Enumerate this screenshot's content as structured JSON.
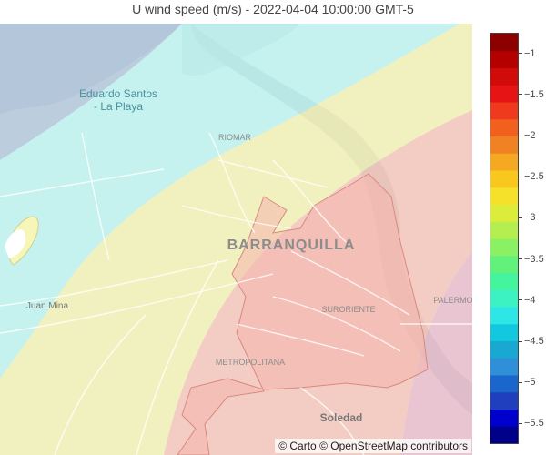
{
  "title": "U wind speed (m/s) - 2022-04-04 10:00:00 GMT-5",
  "map": {
    "labels": [
      {
        "id": "eduardo",
        "lines": [
          "Eduardo Santos",
          "- La Playa"
        ]
      },
      {
        "id": "riomar",
        "lines": [
          "RIOMAR"
        ]
      },
      {
        "id": "barranquilla",
        "lines": [
          "BARRANQUILLA"
        ]
      },
      {
        "id": "suroriente",
        "lines": [
          "SURORIENTE"
        ]
      },
      {
        "id": "juan-mina",
        "lines": [
          "Juan Mina"
        ]
      },
      {
        "id": "metropolitana",
        "lines": [
          "METROPOLITANA"
        ]
      },
      {
        "id": "soledad",
        "lines": [
          "Soledad"
        ]
      },
      {
        "id": "palermo",
        "lines": [
          "PALERMO"
        ]
      }
    ],
    "wind_zones": [
      {
        "name": "zone-1",
        "color": "#a8c0d8"
      },
      {
        "name": "zone-2",
        "color": "#b5f5f0"
      },
      {
        "name": "zone-3",
        "color": "#f3f3b0"
      },
      {
        "name": "zone-4",
        "color": "#f5c3b6"
      },
      {
        "name": "zone-5",
        "color": "#e8b8c8"
      }
    ]
  },
  "colorbar": {
    "min": -5.75,
    "max": -0.75,
    "ticks": [
      "−1",
      "−1.5",
      "−2",
      "−2.5",
      "−3",
      "−3.5",
      "−4",
      "−4.5",
      "−5",
      "−5.5"
    ],
    "tick_values": [
      -1,
      -1.5,
      -2,
      -2.5,
      -3,
      -3.5,
      -4,
      -4.5,
      -5,
      -5.5
    ],
    "colors": [
      "#00008b",
      "#0000cd",
      "#1f3fbf",
      "#1a66cc",
      "#2f8fd8",
      "#19a8d2",
      "#12c8de",
      "#2ee6e6",
      "#3cf2c3",
      "#45f59e",
      "#62f27c",
      "#8af064",
      "#b5ef4f",
      "#dcec3a",
      "#f5e02a",
      "#f9c81e",
      "#f5a821",
      "#f08224",
      "#f2601e",
      "#ef3a1e",
      "#e61414",
      "#d10a0a",
      "#b50000",
      "#8c0000"
    ]
  },
  "attribution": {
    "carto": "© Carto",
    "osm": "© OpenStreetMap contributors"
  }
}
